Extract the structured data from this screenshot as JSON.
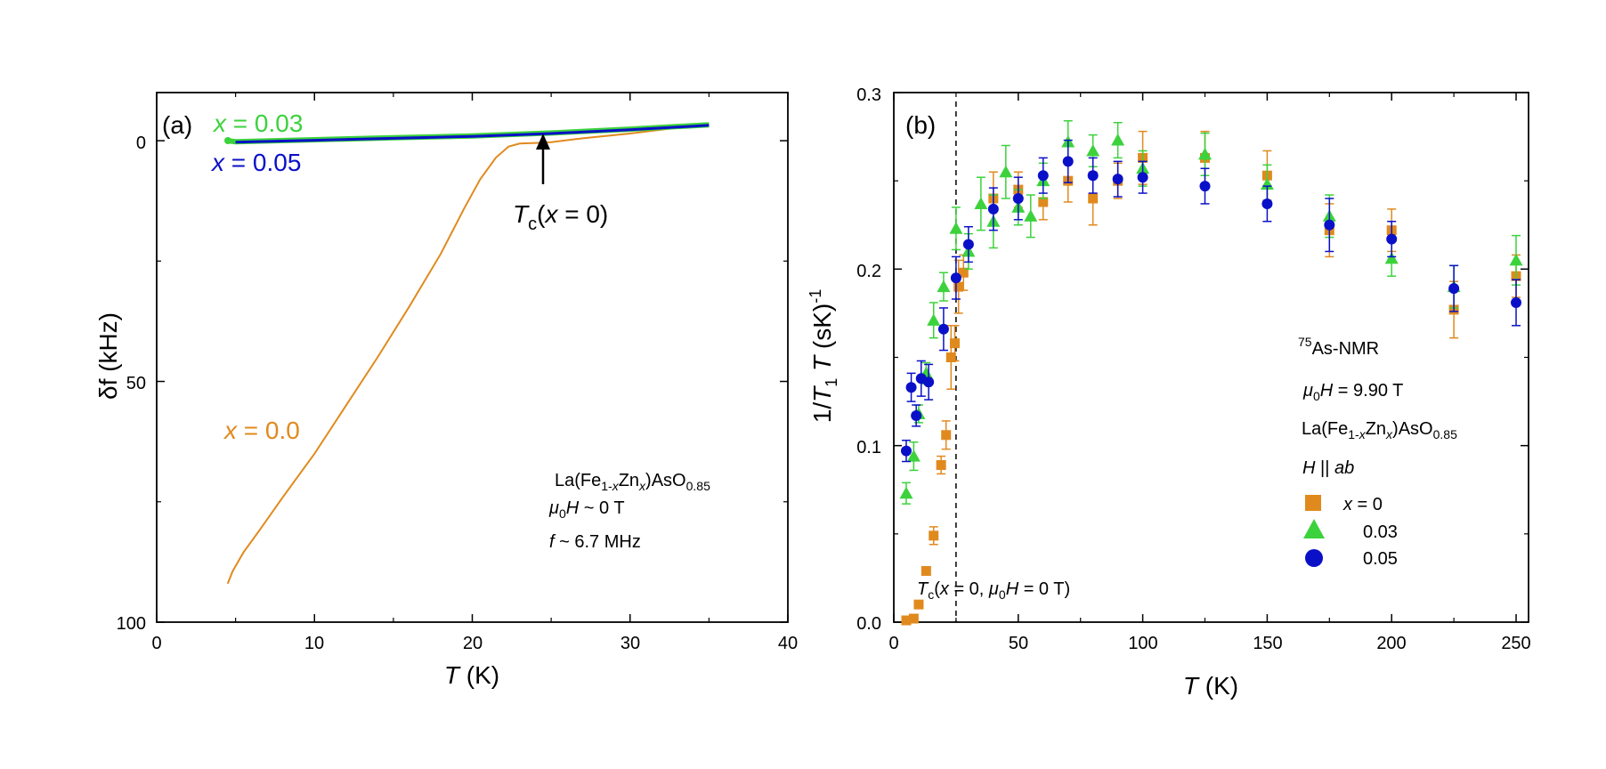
{
  "chart_data": [
    {
      "panel": "a",
      "type": "line",
      "panel_label": "(a)",
      "xlabel_var": "T",
      "xlabel_unit": " (K)",
      "ylabel_var": "δf",
      "ylabel_unit": " (kHz)",
      "xlim": [
        0,
        40
      ],
      "ylim": [
        100,
        -10
      ],
      "y_inverted": true,
      "xticks": [
        "0",
        "10",
        "20",
        "30",
        "40"
      ],
      "yticks": [
        "0",
        "50",
        "100"
      ],
      "colors": {
        "x0": "#E08A1E",
        "x003": "#3CD23C",
        "x005": "#0A10C8"
      },
      "series": [
        {
          "name": "x = 0.0",
          "label_var": "x",
          "label_val": " = 0.0",
          "x": [
            4.5,
            4.8,
            5.5,
            6.5,
            8,
            10,
            12,
            14,
            16,
            18,
            19.5,
            20.5,
            21.5,
            22.3,
            23,
            23.8,
            24.5,
            25,
            27,
            30,
            33,
            35
          ],
          "y": [
            92,
            89.5,
            85.5,
            81,
            74,
            65,
            55,
            45,
            34.5,
            23.5,
            14,
            8,
            3.5,
            1.2,
            0.6,
            0.5,
            0.4,
            0.3,
            -0.5,
            -1.5,
            -2.7,
            -3.3
          ]
        },
        {
          "name": "x = 0.03",
          "label_var": "x",
          "label_val": " = 0.03",
          "x": [
            4.5,
            5,
            10,
            15,
            20,
            25,
            30,
            35
          ],
          "y": [
            0,
            0.2,
            -0.2,
            -0.6,
            -1.0,
            -1.6,
            -2.4,
            -3.3
          ]
        },
        {
          "name": "x = 0.05",
          "label_var": "x",
          "label_val": " = 0.05",
          "x": [
            5,
            10,
            15,
            20,
            25,
            30,
            35
          ],
          "y": [
            0.3,
            -0.1,
            -0.5,
            -0.9,
            -1.5,
            -2.3,
            -3.2
          ]
        }
      ],
      "arrow_label_var": "T",
      "arrow_label_sub": "c",
      "arrow_label_rest": "(x = 0)",
      "arrow_x": 24.5,
      "info_line1": "La(Fe1-xZnx)AsO0.85",
      "info_line2": "μ0H ~ 0 T",
      "info_line3": "f ~ 6.7 MHz"
    },
    {
      "panel": "b",
      "type": "scatter",
      "panel_label": "(b)",
      "xlabel_var": "T",
      "xlabel_unit": " (K)",
      "ylabel": "1/T1T (sK)-1",
      "xlim": [
        0,
        255
      ],
      "ylim": [
        0,
        0.3
      ],
      "xticks": [
        "0",
        "50",
        "100",
        "150",
        "200",
        "250"
      ],
      "yticks": [
        "0.0",
        "0.1",
        "0.2",
        "0.3"
      ],
      "tc_line_x": 25,
      "tc_label": "Tc(x = 0, μ0H = 0 T)",
      "info_nmr": "75As-NMR",
      "info_field": "μ0H = 9.90 T",
      "info_comp": "La(Fe1-xZnx)AsO0.85",
      "legend_title": "H || ab",
      "series": [
        {
          "name": "x = 0",
          "marker": "square",
          "color": "#E08A1E",
          "x": [
            5,
            8,
            10,
            13,
            16,
            19,
            21,
            23,
            24.5,
            26,
            28,
            40,
            50,
            60,
            70,
            80,
            90,
            100,
            125,
            150,
            175,
            200,
            225,
            250
          ],
          "y": [
            0.001,
            0.002,
            0.01,
            0.029,
            0.049,
            0.089,
            0.106,
            0.15,
            0.158,
            0.19,
            0.198,
            0.24,
            0.245,
            0.238,
            0.25,
            0.24,
            0.25,
            0.263,
            0.263,
            0.253,
            0.222,
            0.222,
            0.177,
            0.196
          ],
          "err": [
            0,
            0,
            0,
            0,
            0.005,
            0.005,
            0.008,
            0.018,
            0.01,
            0.015,
            0.01,
            0.015,
            0.01,
            0.01,
            0.012,
            0.015,
            0.01,
            0.015,
            0.015,
            0.014,
            0.015,
            0.012,
            0.016,
            0.012
          ]
        },
        {
          "name": "0.03",
          "marker": "triangle",
          "color": "#3CD23C",
          "x": [
            5,
            8,
            10,
            13,
            16,
            20,
            25,
            30,
            35,
            40,
            45,
            50,
            55,
            60,
            70,
            80,
            90,
            100,
            125,
            150,
            175,
            200,
            225,
            250
          ],
          "y": [
            0.073,
            0.094,
            0.118,
            0.141,
            0.171,
            0.19,
            0.223,
            0.21,
            0.237,
            0.227,
            0.255,
            0.235,
            0.23,
            0.25,
            0.272,
            0.267,
            0.273,
            0.257,
            0.265,
            0.248,
            0.23,
            0.206,
            0.19,
            0.205
          ],
          "err": [
            0.006,
            0.008,
            0.005,
            0.006,
            0.01,
            0.008,
            0.012,
            0.01,
            0.015,
            0.015,
            0.015,
            0.01,
            0.012,
            0.01,
            0.012,
            0.009,
            0.01,
            0.01,
            0.012,
            0.011,
            0.012,
            0.01,
            0.012,
            0.014
          ]
        },
        {
          "name": "0.05",
          "marker": "circle",
          "color": "#0A10C8",
          "x": [
            5,
            7,
            9,
            11,
            14,
            20,
            25,
            30,
            40,
            50,
            60,
            70,
            80,
            90,
            100,
            125,
            150,
            175,
            200,
            225,
            250
          ],
          "y": [
            0.097,
            0.133,
            0.117,
            0.138,
            0.136,
            0.166,
            0.195,
            0.214,
            0.234,
            0.24,
            0.253,
            0.261,
            0.253,
            0.251,
            0.252,
            0.247,
            0.237,
            0.225,
            0.217,
            0.189,
            0.181
          ],
          "err": [
            0.006,
            0.008,
            0.006,
            0.01,
            0.01,
            0.012,
            0.012,
            0.01,
            0.012,
            0.012,
            0.01,
            0.012,
            0.01,
            0.01,
            0.009,
            0.01,
            0.01,
            0.015,
            0.01,
            0.013,
            0.013
          ]
        }
      ]
    }
  ]
}
